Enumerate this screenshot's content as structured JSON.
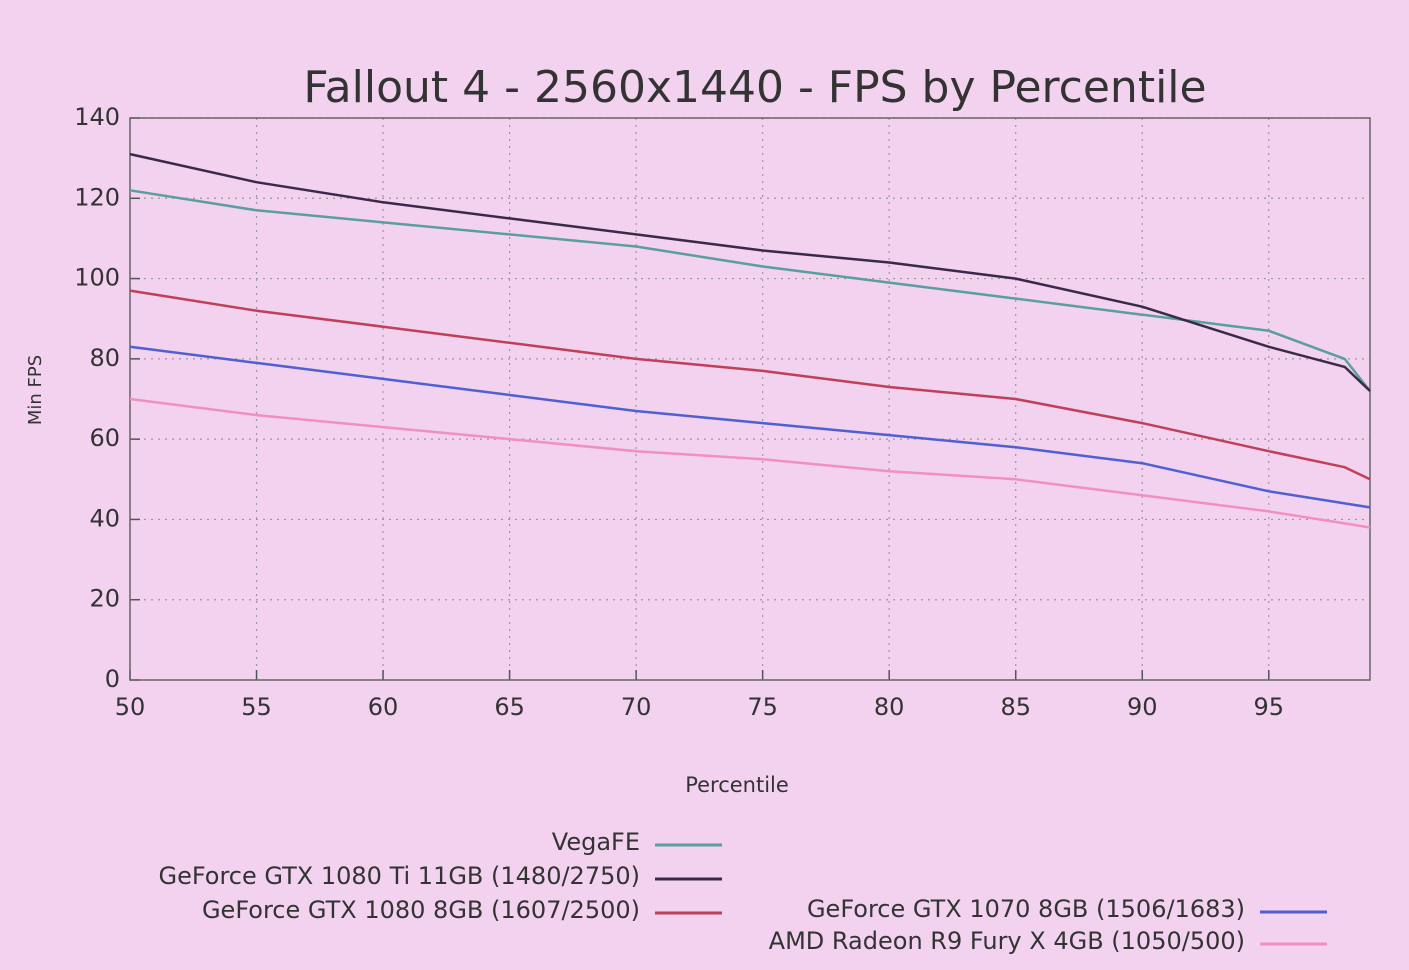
{
  "chart_data": {
    "type": "line",
    "title": "Fallout 4 - 2560x1440 - FPS by Percentile",
    "x_label": "Percentile",
    "y_label": "Min FPS",
    "x": [
      50,
      55,
      60,
      65,
      70,
      75,
      80,
      85,
      90,
      95,
      98,
      99
    ],
    "series": [
      {
        "name": "VegaFE",
        "color": "#5a9ea0",
        "values": [
          122,
          117,
          114,
          111,
          108,
          103,
          99,
          95,
          91,
          87,
          80,
          72
        ]
      },
      {
        "name": "GeForce GTX 1080 Ti 11GB (1480/2750)",
        "color": "#3a2a4a",
        "values": [
          131,
          124,
          119,
          115,
          111,
          107,
          104,
          100,
          93,
          83,
          78,
          72
        ]
      },
      {
        "name": "GeForce GTX 1080 8GB (1607/2500)",
        "color": "#c0405a",
        "values": [
          97,
          92,
          88,
          84,
          80,
          77,
          73,
          70,
          64,
          57,
          53,
          50
        ]
      },
      {
        "name": "GeForce GTX 1070 8GB (1506/1683)",
        "color": "#5060d0",
        "values": [
          83,
          79,
          75,
          71,
          67,
          64,
          61,
          58,
          54,
          47,
          44,
          43
        ]
      },
      {
        "name": "AMD Radeon R9 Fury X 4GB (1050/500)",
        "color": "#f090c0",
        "values": [
          70,
          66,
          63,
          60,
          57,
          55,
          52,
          50,
          46,
          42,
          39,
          38
        ]
      }
    ],
    "xlim": [
      50,
      99
    ],
    "xticks": [
      50,
      55,
      60,
      65,
      70,
      75,
      80,
      85,
      90,
      95
    ],
    "ylim": [
      0,
      140
    ],
    "yticks": [
      0,
      20,
      40,
      60,
      80,
      100,
      120,
      140
    ],
    "grid": true
  }
}
